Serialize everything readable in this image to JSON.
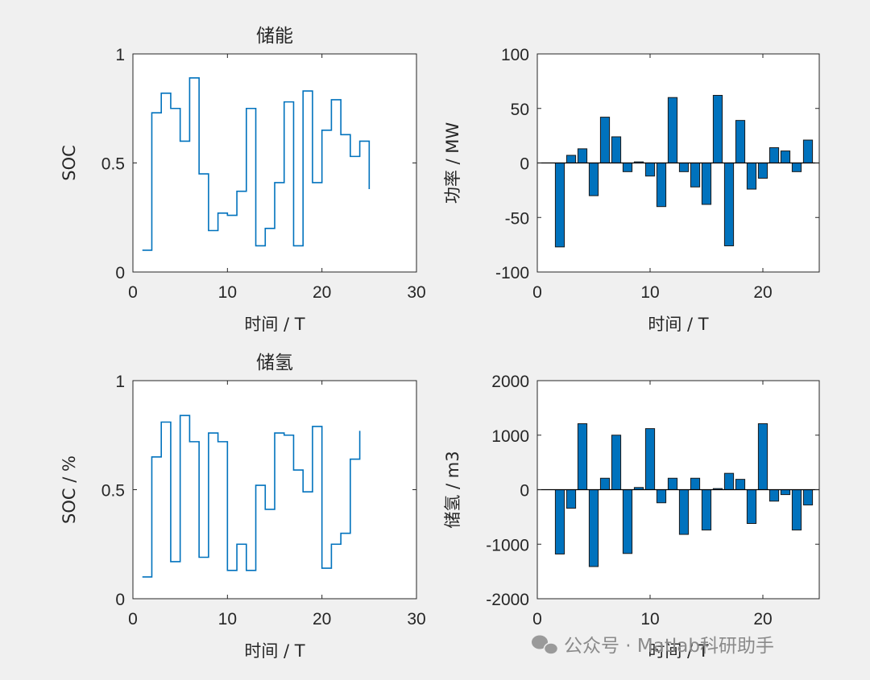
{
  "watermark": {
    "text": "公众号 · Matlab科研助手",
    "icon": "wechat-icon"
  },
  "chart_data": [
    {
      "id": "storage-soc",
      "type": "line",
      "step": true,
      "title": "储能",
      "xlabel": "时间 / T",
      "ylabel": "SOC",
      "xlim": [
        0,
        30
      ],
      "ylim": [
        0,
        1
      ],
      "xticks": [
        "0",
        "10",
        "20",
        "30"
      ],
      "yticks": [
        "0",
        "0.5",
        "1"
      ],
      "color": "#0072BD",
      "x": [
        1,
        2,
        3,
        4,
        5,
        6,
        7,
        8,
        9,
        10,
        11,
        12,
        13,
        14,
        15,
        16,
        17,
        18,
        19,
        20,
        21,
        22,
        23,
        24,
        25
      ],
      "y": [
        0.1,
        0.73,
        0.82,
        0.75,
        0.6,
        0.89,
        0.45,
        0.19,
        0.27,
        0.26,
        0.37,
        0.75,
        0.12,
        0.2,
        0.41,
        0.78,
        0.12,
        0.83,
        0.41,
        0.65,
        0.79,
        0.63,
        0.53,
        0.6,
        0.38
      ]
    },
    {
      "id": "storage-power",
      "type": "bar",
      "xlabel": "时间 / T",
      "ylabel": "功率 / MW",
      "xlim": [
        0,
        25
      ],
      "ylim": [
        -100,
        100
      ],
      "xticks": [
        "0",
        "10",
        "20"
      ],
      "yticks": [
        "100",
        "50",
        "0",
        "-50",
        "-100"
      ],
      "color": "#0072BD",
      "x": [
        2,
        3,
        4,
        5,
        6,
        7,
        8,
        9,
        10,
        11,
        12,
        13,
        14,
        15,
        16,
        17,
        18,
        19,
        20,
        21,
        22,
        23,
        24
      ],
      "values": [
        -77,
        7,
        13,
        -30,
        42,
        24,
        -8,
        1,
        -12,
        -40,
        60,
        -8,
        -22,
        -38,
        62,
        -76,
        39,
        -24,
        -14,
        14,
        11,
        -8,
        21
      ]
    },
    {
      "id": "hydrogen-soc",
      "type": "line",
      "step": true,
      "title": "储氢",
      "xlabel": "时间 / T",
      "ylabel": "SOC / %",
      "xlim": [
        0,
        30
      ],
      "ylim": [
        0,
        1
      ],
      "xticks": [
        "0",
        "10",
        "20",
        "30"
      ],
      "yticks": [
        "0",
        "0.5",
        "1"
      ],
      "color": "#0072BD",
      "x": [
        1,
        2,
        3,
        4,
        5,
        6,
        7,
        8,
        9,
        10,
        11,
        12,
        13,
        14,
        15,
        16,
        17,
        18,
        19,
        20,
        21,
        22,
        23,
        24
      ],
      "y": [
        0.1,
        0.65,
        0.81,
        0.17,
        0.84,
        0.72,
        0.19,
        0.76,
        0.72,
        0.13,
        0.25,
        0.13,
        0.52,
        0.41,
        0.76,
        0.75,
        0.59,
        0.49,
        0.79,
        0.14,
        0.25,
        0.3,
        0.64,
        0.77
      ]
    },
    {
      "id": "hydrogen-storage",
      "type": "bar",
      "xlabel": "时间 / T",
      "ylabel": "储氢 / m3",
      "xlim": [
        0,
        25
      ],
      "ylim": [
        -2000,
        2000
      ],
      "xticks": [
        "0",
        "10",
        "20"
      ],
      "yticks": [
        "2000",
        "1000",
        "0",
        "-1000",
        "-2000"
      ],
      "color": "#0072BD",
      "x": [
        2,
        3,
        4,
        5,
        6,
        7,
        8,
        9,
        10,
        11,
        12,
        13,
        14,
        15,
        16,
        17,
        18,
        19,
        20,
        21,
        22,
        23,
        24
      ],
      "values": [
        -1180,
        -340,
        1210,
        -1410,
        210,
        1000,
        -1170,
        40,
        1120,
        -240,
        210,
        -820,
        210,
        -740,
        20,
        300,
        190,
        -620,
        1210,
        -210,
        -90,
        -740,
        -280
      ]
    }
  ]
}
